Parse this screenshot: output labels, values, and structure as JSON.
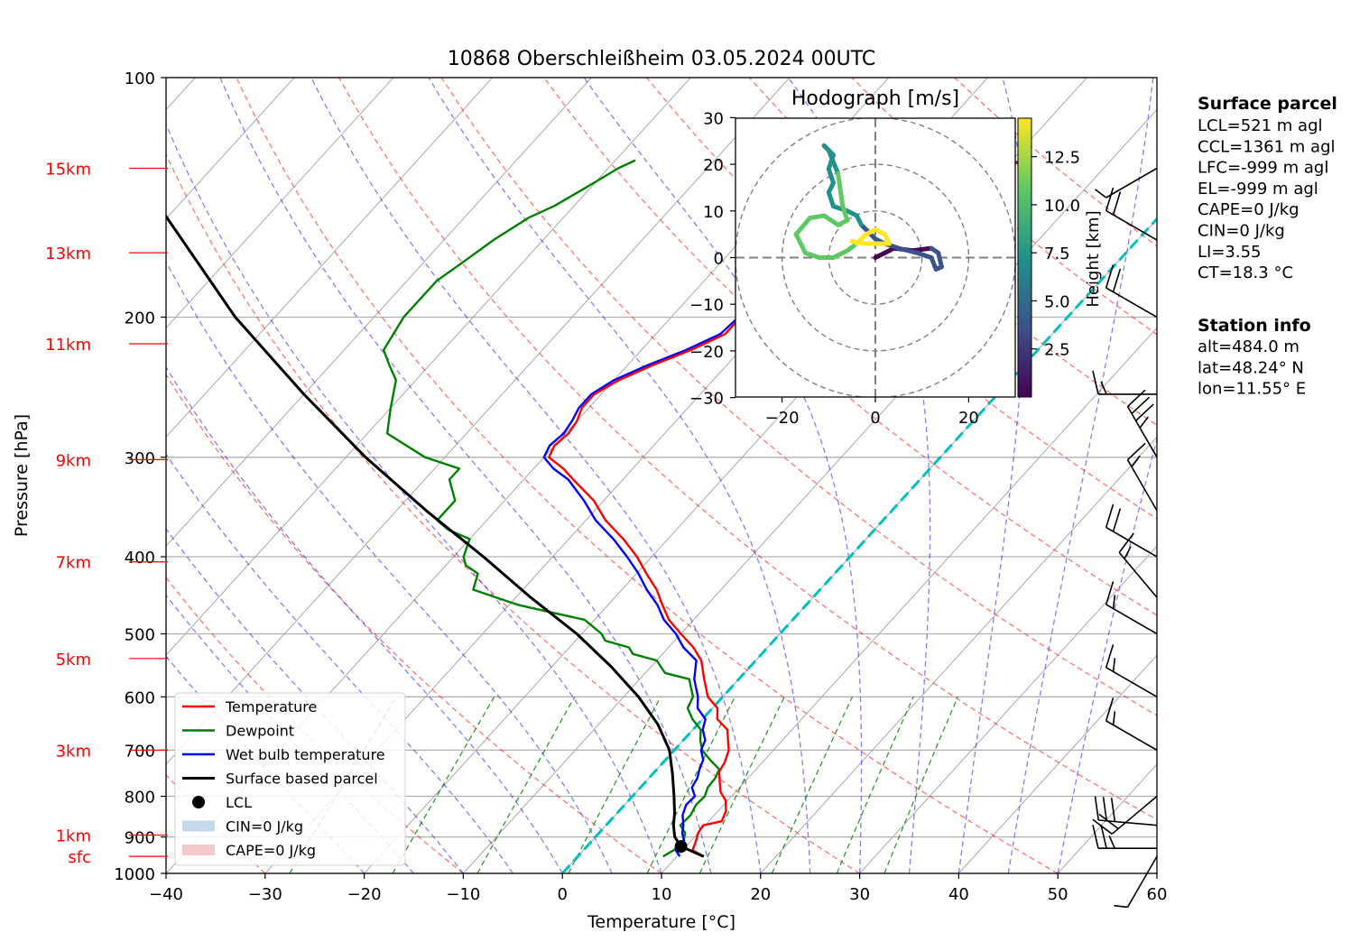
{
  "chart_data": {
    "type": "skew-t",
    "title": "10868 Oberschleißheim 03.05.2024 00UTC",
    "xlabel": "Temperature [°C]",
    "ylabel": "Pressure [hPa]",
    "xlim": [
      -40,
      60
    ],
    "ylim": [
      1000,
      100
    ],
    "x_ticks": [
      -40,
      -30,
      -20,
      -10,
      0,
      10,
      20,
      30,
      40,
      50,
      60
    ],
    "x_tick_labels": [
      "−40",
      "−30",
      "−20",
      "−10",
      "0",
      "10",
      "20",
      "30",
      "40",
      "50",
      "60"
    ],
    "p_ticks": [
      1000,
      900,
      800,
      700,
      600,
      500,
      400,
      300,
      200,
      100
    ],
    "height_labels": [
      {
        "label": "15km",
        "p": 130
      },
      {
        "label": "13km",
        "p": 166
      },
      {
        "label": "11km",
        "p": 216
      },
      {
        "label": "9km",
        "p": 302
      },
      {
        "label": "7km",
        "p": 406
      },
      {
        "label": "5km",
        "p": 537
      },
      {
        "label": "3km",
        "p": 700
      },
      {
        "label": "1km",
        "p": 895
      },
      {
        "label": "sfc",
        "p": 952
      }
    ],
    "legend": {
      "placement": "lower-left",
      "items": [
        {
          "label": "Temperature",
          "kind": "line",
          "color": "#ff0000"
        },
        {
          "label": "Dewpoint",
          "kind": "line",
          "color": "#008000"
        },
        {
          "label": "Wet bulb temperature",
          "kind": "line",
          "color": "#0000ff"
        },
        {
          "label": "Surface based parcel",
          "kind": "line",
          "color": "#000000"
        },
        {
          "label": "LCL",
          "kind": "marker",
          "color": "#000000"
        },
        {
          "label": "CIN=0 J/kg",
          "kind": "patch",
          "color": "#c6d9ea"
        },
        {
          "label": "CAPE=0 J/kg",
          "kind": "patch",
          "color": "#f5c9c9"
        }
      ]
    },
    "series": [
      {
        "name": "Temperature",
        "color": "#ff0000",
        "points": [
          [
            12.7,
            952
          ],
          [
            11,
            935
          ],
          [
            10.5,
            910
          ],
          [
            10,
            890
          ],
          [
            9.8,
            870
          ],
          [
            11.3,
            860
          ],
          [
            10.8,
            835
          ],
          [
            9.8,
            810
          ],
          [
            8.5,
            790
          ],
          [
            7.6,
            770
          ],
          [
            6.5,
            745
          ],
          [
            6.2,
            725
          ],
          [
            5.5,
            700
          ],
          [
            4.5,
            680
          ],
          [
            3.5,
            660
          ],
          [
            1.5,
            640
          ],
          [
            0.5,
            620
          ],
          [
            -1.5,
            600
          ],
          [
            -3.5,
            570
          ],
          [
            -5.5,
            540
          ],
          [
            -7.5,
            520
          ],
          [
            -10,
            500
          ],
          [
            -12.5,
            480
          ],
          [
            -14.5,
            460
          ],
          [
            -16.5,
            440
          ],
          [
            -19,
            420
          ],
          [
            -21.5,
            400
          ],
          [
            -24.5,
            380
          ],
          [
            -28,
            360
          ],
          [
            -31,
            340
          ],
          [
            -35,
            320
          ],
          [
            -37,
            310
          ],
          [
            -39.5,
            300
          ],
          [
            -40,
            290
          ],
          [
            -39.7,
            280
          ],
          [
            -40,
            270
          ],
          [
            -40.7,
            260
          ],
          [
            -40.7,
            250
          ],
          [
            -39.5,
            240
          ],
          [
            -37.5,
            230
          ],
          [
            -35,
            220
          ],
          [
            -33,
            210
          ],
          [
            -33,
            200
          ],
          [
            -32.5,
            190
          ],
          [
            -30.5,
            180
          ],
          [
            -29.5,
            170
          ],
          [
            -27.5,
            160
          ],
          [
            -25,
            150
          ],
          [
            -23.5,
            140
          ],
          [
            -21.5,
            130
          ],
          [
            -18,
            127
          ]
        ]
      },
      {
        "name": "Wet bulb temperature",
        "color": "#0000ff",
        "points": [
          [
            10.3,
            952
          ],
          [
            9.3,
            935
          ],
          [
            9.3,
            910
          ],
          [
            8.4,
            890
          ],
          [
            7.8,
            870
          ],
          [
            6.8,
            845
          ],
          [
            6.2,
            820
          ],
          [
            6.3,
            800
          ],
          [
            5.2,
            780
          ],
          [
            4.9,
            760
          ],
          [
            4.3,
            740
          ],
          [
            3.8,
            720
          ],
          [
            2.7,
            700
          ],
          [
            2.2,
            680
          ],
          [
            1,
            660
          ],
          [
            0.3,
            640
          ],
          [
            -1.5,
            620
          ],
          [
            -2.5,
            600
          ],
          [
            -4.5,
            570
          ],
          [
            -6,
            540
          ],
          [
            -8.5,
            520
          ],
          [
            -10.5,
            500
          ],
          [
            -13,
            480
          ],
          [
            -15,
            460
          ],
          [
            -17.5,
            440
          ],
          [
            -19.8,
            420
          ],
          [
            -22.5,
            400
          ],
          [
            -25.5,
            380
          ],
          [
            -29,
            360
          ],
          [
            -32,
            340
          ],
          [
            -35.5,
            320
          ],
          [
            -38,
            310
          ],
          [
            -40,
            300
          ],
          [
            -40.5,
            290
          ],
          [
            -40.2,
            280
          ],
          [
            -40.5,
            270
          ],
          [
            -41,
            260
          ],
          [
            -41,
            250
          ],
          [
            -40,
            240
          ],
          [
            -38,
            230
          ],
          [
            -35.5,
            220
          ],
          [
            -33.5,
            210
          ],
          [
            -33.2,
            200
          ],
          [
            -32.5,
            190
          ],
          [
            -31,
            180
          ],
          [
            -29.8,
            170
          ],
          [
            -27.8,
            160
          ],
          [
            -25.5,
            150
          ],
          [
            -23.8,
            140
          ],
          [
            -22,
            130
          ],
          [
            -18.5,
            127
          ]
        ]
      },
      {
        "name": "Dewpoint",
        "color": "#008000",
        "points": [
          [
            8.6,
            952
          ],
          [
            9.1,
            935
          ],
          [
            9.2,
            910
          ],
          [
            8.7,
            890
          ],
          [
            7.5,
            870
          ],
          [
            7.6,
            845
          ],
          [
            7.2,
            820
          ],
          [
            7.3,
            800
          ],
          [
            6.8,
            780
          ],
          [
            6.7,
            760
          ],
          [
            6.3,
            740
          ],
          [
            4.5,
            720
          ],
          [
            2.8,
            700
          ],
          [
            1.7,
            680
          ],
          [
            0.8,
            660
          ],
          [
            -1,
            640
          ],
          [
            -2.5,
            620
          ],
          [
            -3,
            600
          ],
          [
            -5,
            570
          ],
          [
            -8,
            560
          ],
          [
            -9,
            550
          ],
          [
            -10,
            540
          ],
          [
            -13,
            530
          ],
          [
            -14,
            520
          ],
          [
            -17,
            510
          ],
          [
            -18,
            500
          ],
          [
            -21,
            480
          ],
          [
            -25,
            470
          ],
          [
            -29,
            460
          ],
          [
            -32,
            450
          ],
          [
            -35,
            440
          ],
          [
            -36,
            420
          ],
          [
            -38,
            410
          ],
          [
            -39,
            400
          ],
          [
            -40,
            380
          ],
          [
            -43,
            370
          ],
          [
            -45,
            360
          ],
          [
            -45,
            340
          ],
          [
            -47.5,
            320
          ],
          [
            -47.5,
            310
          ],
          [
            -52,
            300
          ],
          [
            -58,
            280
          ],
          [
            -60,
            260
          ],
          [
            -62,
            240
          ],
          [
            -64,
            230
          ],
          [
            -66,
            220
          ],
          [
            -67,
            200
          ],
          [
            -67,
            180
          ],
          [
            -66,
            170
          ],
          [
            -65,
            160
          ],
          [
            -63.5,
            150
          ],
          [
            -62,
            145
          ],
          [
            -61,
            140
          ],
          [
            -60,
            135
          ],
          [
            -59,
            130
          ],
          [
            -58,
            127
          ]
        ]
      },
      {
        "name": "Surface based parcel",
        "color": "#000000",
        "points": [
          [
            12.7,
            952
          ],
          [
            9.5,
            925
          ],
          [
            8,
            900
          ],
          [
            6.8,
            870
          ],
          [
            5.8,
            840
          ],
          [
            4.2,
            800
          ],
          [
            2,
            750
          ],
          [
            -0.5,
            700
          ],
          [
            -4,
            650
          ],
          [
            -8.5,
            600
          ],
          [
            -14,
            550
          ],
          [
            -20.5,
            500
          ],
          [
            -28.5,
            450
          ],
          [
            -37,
            400
          ],
          [
            -47,
            350
          ],
          [
            -58,
            300
          ],
          [
            -70,
            250
          ],
          [
            -84,
            200
          ],
          [
            -100,
            150
          ],
          [
            -108,
            130
          ]
        ]
      }
    ],
    "lcl": {
      "label": "LCL",
      "T": 9.5,
      "p": 925
    },
    "hodograph": {
      "title": "Hodograph [m/s]",
      "xlim": [
        -30,
        30
      ],
      "ylim": [
        -30,
        30
      ],
      "ticks": [
        -30,
        -20,
        -10,
        0,
        10,
        20,
        30
      ],
      "x_tick_labels": [
        "−20",
        "0",
        "20"
      ],
      "y_tick_labels": [
        "30",
        "20",
        "10",
        "0",
        "−10",
        "−20",
        "−30"
      ],
      "colorbar": {
        "label": "Height [km]",
        "min": 0,
        "max": 14.5,
        "ticks": [
          2.5,
          5.0,
          7.5,
          10.0,
          12.5
        ],
        "tick_labels": [
          "2.5",
          "5.0",
          "7.5",
          "10.0",
          "12.5"
        ]
      },
      "points": [
        [
          0,
          0,
          0
        ],
        [
          4,
          2,
          0.5
        ],
        [
          8,
          1.5,
          1
        ],
        [
          12,
          2,
          1.5
        ],
        [
          13.5,
          1,
          2
        ],
        [
          14.2,
          -2,
          2.5
        ],
        [
          13,
          -2.5,
          2.8
        ],
        [
          12,
          0,
          3.2
        ],
        [
          9,
          1,
          3.6
        ],
        [
          5,
          2,
          4
        ],
        [
          2,
          3,
          4.4
        ],
        [
          0,
          4,
          4.8
        ],
        [
          -1,
          5,
          5
        ],
        [
          -3,
          7,
          5.3
        ],
        [
          -4,
          9,
          5.6
        ],
        [
          -6,
          10,
          6
        ],
        [
          -9,
          11,
          6.5
        ],
        [
          -10,
          14,
          7
        ],
        [
          -9,
          16,
          7.3
        ],
        [
          -10,
          19,
          7.6
        ],
        [
          -9,
          22,
          8
        ],
        [
          -11,
          24,
          8.3
        ],
        [
          -10,
          23,
          8.6
        ],
        [
          -8,
          18,
          9
        ],
        [
          -7,
          11,
          9.3
        ],
        [
          -6,
          8,
          9.6
        ],
        [
          -8,
          7,
          10
        ],
        [
          -11,
          9,
          10.3
        ],
        [
          -14,
          8.5,
          10.6
        ],
        [
          -17,
          5,
          11
        ],
        [
          -15,
          1,
          11.3
        ],
        [
          -12,
          0,
          11.6
        ],
        [
          -9,
          0,
          12
        ],
        [
          -6,
          1.5,
          12.3
        ],
        [
          -4,
          3,
          12.6
        ],
        [
          -2,
          5,
          12.9
        ],
        [
          0,
          6,
          13.2
        ],
        [
          2,
          5,
          13.5
        ],
        [
          3,
          3,
          13.8
        ],
        [
          1,
          3,
          14
        ],
        [
          -2,
          3,
          14.2
        ],
        [
          -5,
          3.5,
          14.4
        ]
      ]
    },
    "surface_parcel": {
      "title": "Surface parcel",
      "lines": [
        "LCL=521 m agl",
        "CCL=1361 m agl",
        "LFC=-999 m agl",
        "EL=-999 m agl",
        "CAPE=0 J/kg",
        "CIN=0 J/kg",
        "LI=3.55",
        "CT=18.3 °C"
      ]
    },
    "station_info": {
      "title": "Station info",
      "lines": [
        "alt=484.0 m",
        "lat=48.24° N",
        "lon=11.55° E"
      ]
    },
    "wind_barbs": [
      {
        "p": 952,
        "dir": 210,
        "speed_kt": 5
      },
      {
        "p": 930,
        "dir": 270,
        "speed_kt": 25
      },
      {
        "p": 870,
        "dir": 275,
        "speed_kt": 30
      },
      {
        "p": 800,
        "dir": 230,
        "speed_kt": 20
      },
      {
        "p": 700,
        "dir": 300,
        "speed_kt": 15
      },
      {
        "p": 600,
        "dir": 300,
        "speed_kt": 15
      },
      {
        "p": 500,
        "dir": 300,
        "speed_kt": 15
      },
      {
        "p": 450,
        "dir": 320,
        "speed_kt": 15
      },
      {
        "p": 400,
        "dir": 300,
        "speed_kt": 20
      },
      {
        "p": 350,
        "dir": 330,
        "speed_kt": 15
      },
      {
        "p": 300,
        "dir": 330,
        "speed_kt": 35
      },
      {
        "p": 250,
        "dir": 270,
        "speed_kt": 15
      },
      {
        "p": 200,
        "dir": 300,
        "speed_kt": 20
      },
      {
        "p": 160,
        "dir": 300,
        "speed_kt": 20
      },
      {
        "p": 130,
        "dir": 240,
        "speed_kt": 5
      }
    ]
  }
}
